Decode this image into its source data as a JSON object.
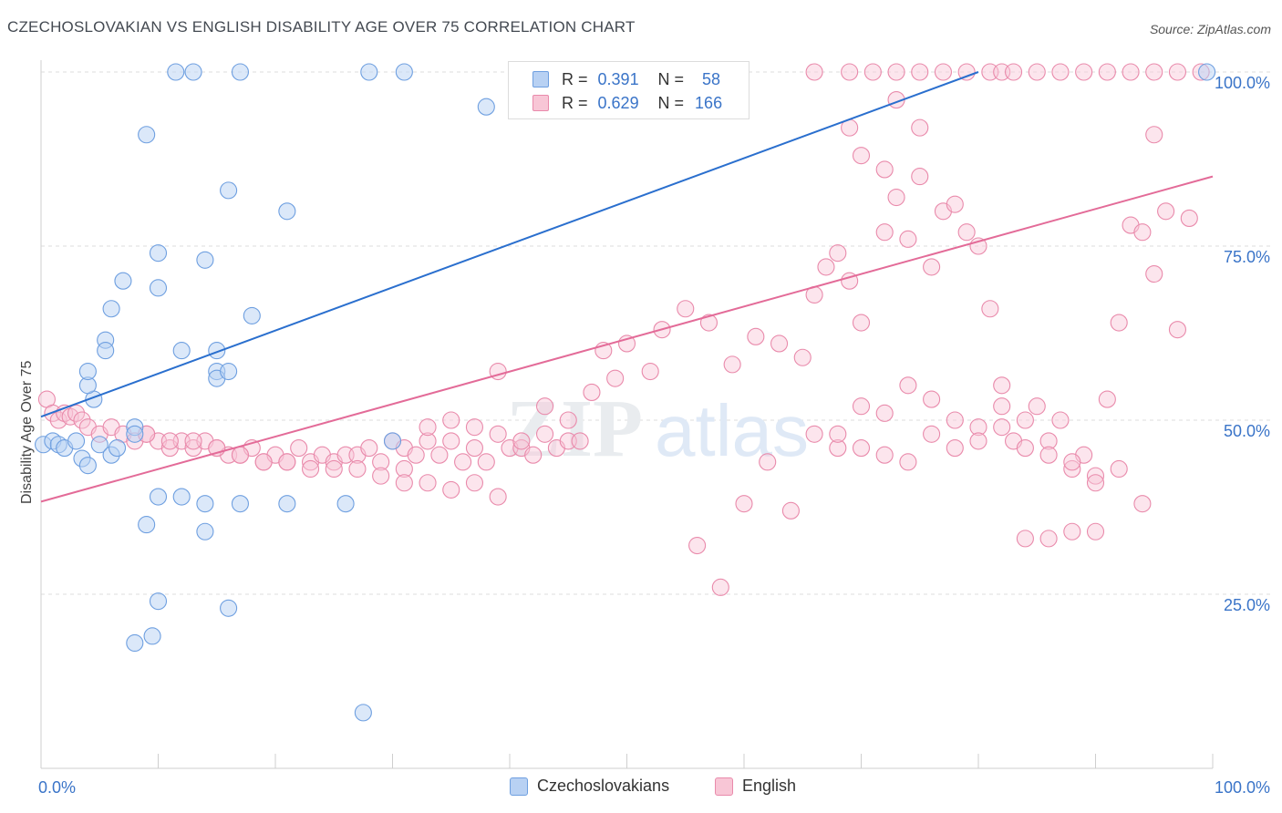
{
  "header": {
    "title": "CZECHOSLOVAKIAN VS ENGLISH DISABILITY AGE OVER 75 CORRELATION CHART",
    "source": "Source: ZipAtlas.com"
  },
  "legend": {
    "r_label": "R =",
    "n_label": "N =",
    "entries": [
      {
        "name": "Czechoslovakians",
        "r": "0.391",
        "n": "58",
        "fill": "#b8d1f3",
        "stroke": "#6e9fe0"
      },
      {
        "name": "English",
        "r": "0.629",
        "n": "166",
        "fill": "#f8c6d6",
        "stroke": "#e98aab"
      }
    ]
  },
  "watermark": {
    "zip": "ZIP",
    "atlas": "atlas"
  },
  "colors": {
    "blue_line": "#2a6fce",
    "pink_line": "#e36b98",
    "axis_text": "#3a74c8",
    "grid": "#dedede"
  },
  "chart_data": {
    "type": "scatter",
    "xlabel": "",
    "ylabel": "Disability Age Over 75",
    "xlim": [
      0,
      100
    ],
    "ylim": [
      0,
      100
    ],
    "x_tick_labels": [
      "0.0%",
      "100.0%"
    ],
    "y_tick_labels": [
      "25.0%",
      "50.0%",
      "75.0%",
      "100.0%"
    ],
    "y_ticks": [
      25,
      50,
      75,
      100
    ],
    "grid": true,
    "legend_position": "top-center",
    "series": [
      {
        "name": "Czechoslovakians",
        "color": "#6e9fe0",
        "trend": {
          "x": [
            0,
            80
          ],
          "y": [
            50.5,
            100
          ]
        },
        "points": [
          [
            0.2,
            46.5
          ],
          [
            1,
            47
          ],
          [
            1.5,
            46.5
          ],
          [
            2,
            46
          ],
          [
            3,
            47
          ],
          [
            3.5,
            44.5
          ],
          [
            4,
            43.5
          ],
          [
            5,
            46.5
          ],
          [
            6,
            45
          ],
          [
            5.5,
            61.5
          ],
          [
            4.5,
            53
          ],
          [
            4,
            55
          ],
          [
            4,
            57
          ],
          [
            5.5,
            60
          ],
          [
            6,
            66
          ],
          [
            7,
            70
          ],
          [
            8,
            49
          ],
          [
            8,
            48
          ],
          [
            6.5,
            46
          ],
          [
            11.5,
            100
          ],
          [
            13,
            100
          ],
          [
            17,
            100
          ],
          [
            28,
            100
          ],
          [
            31,
            100
          ],
          [
            99.5,
            100
          ],
          [
            38,
            95
          ],
          [
            9,
            91
          ],
          [
            16,
            83
          ],
          [
            21,
            80
          ],
          [
            10,
            74
          ],
          [
            14,
            73
          ],
          [
            10,
            69
          ],
          [
            15,
            60
          ],
          [
            15,
            57
          ],
          [
            12,
            60
          ],
          [
            18,
            65
          ],
          [
            15,
            56
          ],
          [
            16,
            57
          ],
          [
            10,
            39
          ],
          [
            12,
            39
          ],
          [
            14,
            38
          ],
          [
            17,
            38
          ],
          [
            21,
            38
          ],
          [
            26,
            38
          ],
          [
            9,
            35
          ],
          [
            14,
            34
          ],
          [
            10,
            24
          ],
          [
            16,
            23
          ],
          [
            8,
            18
          ],
          [
            9.5,
            19
          ],
          [
            27.5,
            8
          ],
          [
            30,
            47
          ]
        ]
      },
      {
        "name": "English",
        "color": "#e98aab",
        "trend": {
          "x": [
            0,
            100
          ],
          "y": [
            38.3,
            85
          ]
        },
        "points": [
          [
            0.5,
            53
          ],
          [
            1,
            51
          ],
          [
            1.5,
            50
          ],
          [
            2,
            51
          ],
          [
            2.5,
            50.5
          ],
          [
            3,
            51
          ],
          [
            3.5,
            50
          ],
          [
            4,
            49
          ],
          [
            5,
            48
          ],
          [
            6,
            49
          ],
          [
            7,
            48
          ],
          [
            8,
            47
          ],
          [
            9,
            48
          ],
          [
            10,
            47
          ],
          [
            11,
            46
          ],
          [
            12,
            47
          ],
          [
            13,
            46
          ],
          [
            14,
            47
          ],
          [
            15,
            46
          ],
          [
            16,
            45
          ],
          [
            17,
            45
          ],
          [
            18,
            46
          ],
          [
            19,
            44
          ],
          [
            20,
            45
          ],
          [
            21,
            44
          ],
          [
            22,
            46
          ],
          [
            23,
            44
          ],
          [
            24,
            45
          ],
          [
            25,
            44
          ],
          [
            26,
            45
          ],
          [
            27,
            45
          ],
          [
            28,
            46
          ],
          [
            29,
            44
          ],
          [
            30,
            47
          ],
          [
            31,
            46
          ],
          [
            32,
            45
          ],
          [
            33,
            47
          ],
          [
            34,
            45
          ],
          [
            35,
            47
          ],
          [
            36,
            44
          ],
          [
            37,
            46
          ],
          [
            38,
            44
          ],
          [
            39,
            48
          ],
          [
            40,
            46
          ],
          [
            41,
            46
          ],
          [
            42,
            45
          ],
          [
            43,
            48
          ],
          [
            44,
            46
          ],
          [
            45,
            47
          ],
          [
            46,
            47
          ],
          [
            31,
            43
          ],
          [
            33,
            49
          ],
          [
            35,
            50
          ],
          [
            37,
            49
          ],
          [
            39,
            57
          ],
          [
            41,
            47
          ],
          [
            43,
            52
          ],
          [
            45,
            50
          ],
          [
            47,
            54
          ],
          [
            49,
            56
          ],
          [
            48,
            60
          ],
          [
            50,
            61
          ],
          [
            52,
            57
          ],
          [
            53,
            63
          ],
          [
            55,
            66
          ],
          [
            57,
            64
          ],
          [
            59,
            58
          ],
          [
            61,
            62
          ],
          [
            63,
            61
          ],
          [
            65,
            59
          ],
          [
            66,
            68
          ],
          [
            67,
            72
          ],
          [
            68,
            74
          ],
          [
            69,
            70
          ],
          [
            70,
            64
          ],
          [
            72,
            77
          ],
          [
            73,
            82
          ],
          [
            74,
            76
          ],
          [
            75,
            85
          ],
          [
            76,
            72
          ],
          [
            77,
            80
          ],
          [
            78,
            81
          ],
          [
            79,
            77
          ],
          [
            80,
            75
          ],
          [
            81,
            66
          ],
          [
            82,
            55
          ],
          [
            83,
            47
          ],
          [
            85,
            52
          ],
          [
            87,
            50
          ],
          [
            88,
            43
          ],
          [
            89,
            45
          ],
          [
            91,
            53
          ],
          [
            93,
            78
          ],
          [
            95,
            71
          ],
          [
            97,
            63
          ],
          [
            94,
            77
          ],
          [
            92,
            64
          ],
          [
            90,
            42
          ],
          [
            86,
            33
          ],
          [
            84,
            33
          ],
          [
            56,
            32
          ],
          [
            58,
            26
          ],
          [
            60,
            38
          ],
          [
            62,
            44
          ],
          [
            64,
            37
          ],
          [
            66,
            48
          ],
          [
            68,
            46
          ],
          [
            70,
            52
          ],
          [
            72,
            51
          ],
          [
            74,
            55
          ],
          [
            76,
            53
          ],
          [
            78,
            50
          ],
          [
            80,
            49
          ],
          [
            82,
            52
          ],
          [
            84,
            50
          ],
          [
            86,
            47
          ],
          [
            88,
            44
          ],
          [
            90,
            41
          ],
          [
            92,
            43
          ],
          [
            94,
            38
          ],
          [
            66,
            100
          ],
          [
            69,
            100
          ],
          [
            71,
            100
          ],
          [
            73,
            100
          ],
          [
            75,
            100
          ],
          [
            77,
            100
          ],
          [
            79,
            100
          ],
          [
            81,
            100
          ],
          [
            82,
            100
          ],
          [
            83,
            100
          ],
          [
            85,
            100
          ],
          [
            87,
            100
          ],
          [
            89,
            100
          ],
          [
            91,
            100
          ],
          [
            93,
            100
          ],
          [
            95,
            100
          ],
          [
            97,
            100
          ],
          [
            99,
            100
          ],
          [
            73,
            96
          ],
          [
            75,
            92
          ],
          [
            69,
            92
          ],
          [
            70,
            88
          ],
          [
            72,
            86
          ],
          [
            95,
            91
          ],
          [
            98,
            79
          ],
          [
            96,
            80
          ],
          [
            90,
            34
          ],
          [
            88,
            34
          ],
          [
            86,
            45
          ],
          [
            84,
            46
          ],
          [
            82,
            49
          ],
          [
            80,
            47
          ],
          [
            78,
            46
          ],
          [
            76,
            48
          ],
          [
            74,
            44
          ],
          [
            72,
            45
          ],
          [
            70,
            46
          ],
          [
            68,
            48
          ],
          [
            9,
            48
          ],
          [
            11,
            47
          ],
          [
            13,
            47
          ],
          [
            15,
            46
          ],
          [
            17,
            45
          ],
          [
            19,
            44
          ],
          [
            21,
            44
          ],
          [
            23,
            43
          ],
          [
            25,
            43
          ],
          [
            27,
            43
          ],
          [
            29,
            42
          ],
          [
            31,
            41
          ],
          [
            33,
            41
          ],
          [
            35,
            40
          ],
          [
            37,
            41
          ],
          [
            39,
            39
          ]
        ]
      }
    ]
  }
}
